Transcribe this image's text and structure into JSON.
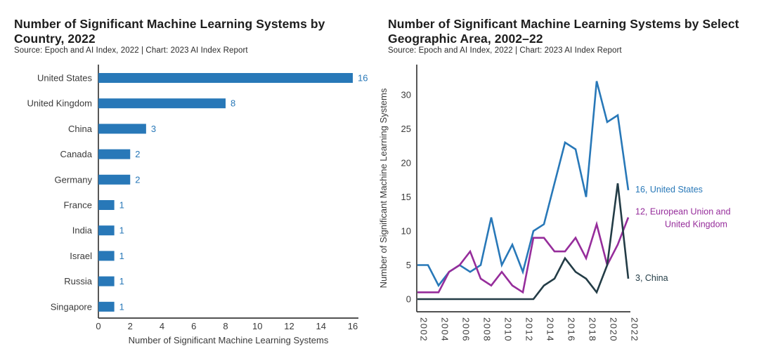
{
  "page": {
    "background": "#ffffff",
    "text_color": "#1d1d1d"
  },
  "chart_data": [
    {
      "id": "ml-systems-by-country-2022",
      "type": "bar",
      "orientation": "horizontal",
      "title": "Number of Significant Machine Learning Systems by Country, 2022",
      "source": "Source: Epoch and AI Index, 2022 | Chart: 2023 AI Index Report",
      "categories": [
        "United States",
        "United Kingdom",
        "China",
        "Canada",
        "Germany",
        "France",
        "India",
        "Israel",
        "Russia",
        "Singapore"
      ],
      "values": [
        16,
        8,
        3,
        2,
        2,
        1,
        1,
        1,
        1,
        1
      ],
      "xlabel": "Number of Significant Machine Learning Systems",
      "ylabel": "",
      "xlim": [
        0,
        16
      ],
      "xticks": [
        0,
        2,
        4,
        6,
        8,
        10,
        12,
        14,
        16
      ],
      "grid": false,
      "bar_color": "#2878b8",
      "value_label_color": "#2878b8"
    },
    {
      "id": "ml-systems-by-geographic-area-2002-22",
      "type": "line",
      "title": "Number of Significant Machine Learning Systems by Select Geographic Area, 2002–22",
      "source": "Source: Epoch and AI Index, 2022 | Chart: 2023 AI Index Report",
      "x": [
        2002,
        2003,
        2004,
        2005,
        2006,
        2007,
        2008,
        2009,
        2010,
        2011,
        2012,
        2013,
        2014,
        2015,
        2016,
        2017,
        2018,
        2019,
        2020,
        2021,
        2022
      ],
      "series": [
        {
          "name": "United States",
          "color": "#2878b8",
          "values": [
            5,
            5,
            2,
            4,
            5,
            4,
            5,
            12,
            5,
            8,
            4,
            10,
            11,
            17,
            23,
            22,
            15,
            32,
            26,
            27,
            16
          ],
          "end_label_lines": [
            "16, United States"
          ]
        },
        {
          "name": "European Union and United Kingdom",
          "color": "#962d9b",
          "values": [
            1,
            1,
            1,
            4,
            5,
            7,
            3,
            2,
            4,
            2,
            1,
            9,
            9,
            7,
            7,
            9,
            6,
            11,
            5,
            8,
            12
          ],
          "end_label_lines": [
            "12, European Union and",
            "United Kingdom"
          ]
        },
        {
          "name": "China",
          "color": "#233c46",
          "values": [
            0,
            0,
            0,
            0,
            0,
            0,
            0,
            0,
            0,
            0,
            0,
            0,
            2,
            3,
            6,
            4,
            3,
            1,
            5,
            17,
            3
          ],
          "end_label_lines": [
            "3, China"
          ]
        }
      ],
      "ylabel": "Number of Significant Machine Learning Systems",
      "xlabel": "",
      "ylim": [
        0,
        34
      ],
      "yticks": [
        0,
        5,
        10,
        15,
        20,
        25,
        30
      ],
      "xticks": [
        2002,
        2004,
        2006,
        2008,
        2010,
        2012,
        2014,
        2016,
        2018,
        2020,
        2022
      ],
      "grid": false,
      "legend_position": "end-of-line-labels"
    }
  ]
}
